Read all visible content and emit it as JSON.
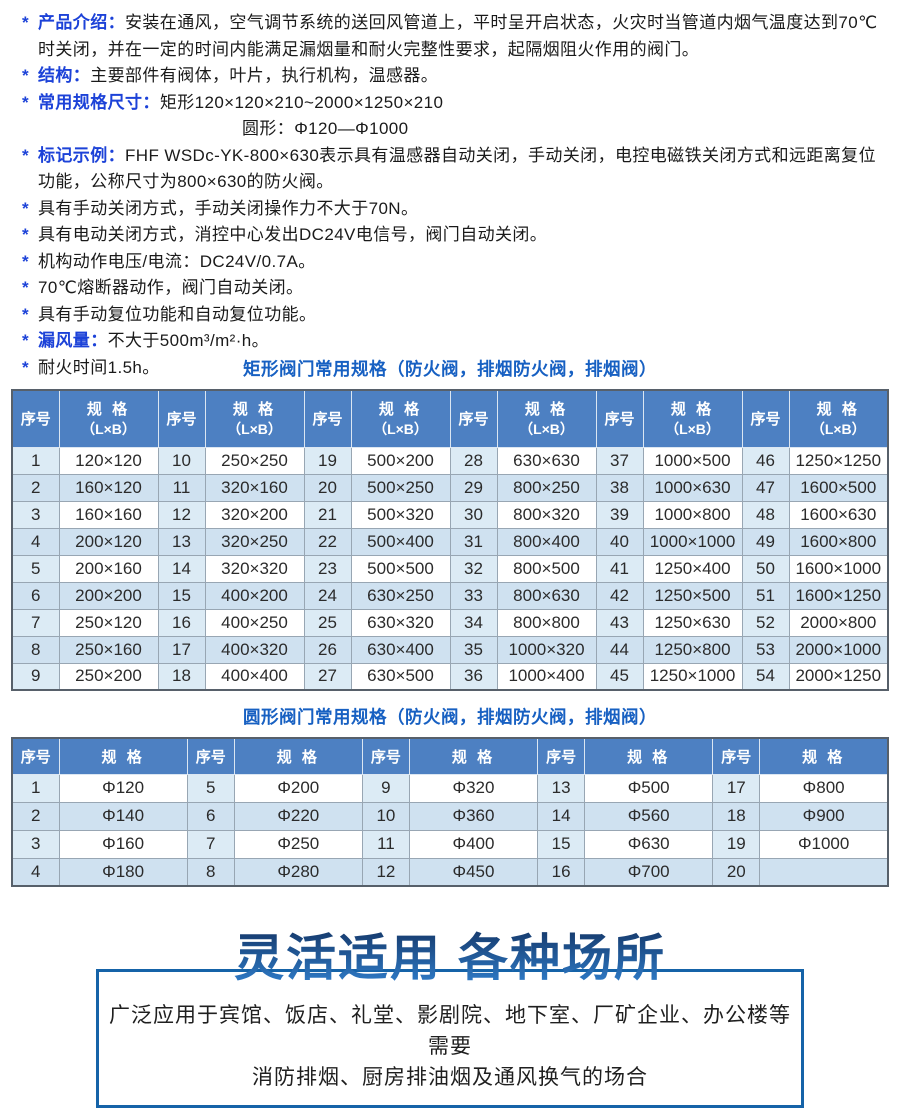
{
  "colors": {
    "accent_label_blue": "#1c42d8",
    "table_title_blue": "#1760c2",
    "table_header_bg": "#4d80c2",
    "table_header_text": "#ffffff",
    "row_alt_blue": "#cfe1f0",
    "seq_cell_tint": "#dcebf5",
    "bottom_box_border": "#1563a8",
    "bottom_title_gradient_top": "#173e72",
    "bottom_title_gradient_bottom": "#2e7ac6"
  },
  "intro": {
    "items": [
      {
        "label": "产品介绍：",
        "text": "安装在通风，空气调节系统的送回风管道上，平时呈开启状态，火灾时当管道内烟气温度达到70℃时关闭，并在一定的时间内能满足漏烟量和耐火完整性要求，起隔烟阻火作用的阀门。"
      },
      {
        "label": "结构：",
        "text": "主要部件有阀体，叶片，执行机构，温感器。"
      },
      {
        "label": "常用规格尺寸：",
        "text": "矩形120×120×210~2000×1250×210",
        "text2": "圆形：Φ120—Φ1000"
      },
      {
        "label": "标记示例：",
        "text": "FHF WSDc-YK-800×630表示具有温感器自动关闭，手动关闭，电控电磁铁关闭方式和远距离复位功能，公称尺寸为800×630的防火阀。"
      },
      {
        "label": "",
        "text": "具有手动关闭方式，手动关闭操作力不大于70N。"
      },
      {
        "label": "",
        "text": "具有电动关闭方式，消控中心发出DC24V电信号，阀门自动关闭。"
      },
      {
        "label": "",
        "text": "机构动作电压/电流：DC24V/0.7A。"
      },
      {
        "label": "",
        "text": "70℃熔断器动作，阀门自动关闭。"
      },
      {
        "label": "",
        "text": "具有手动复位功能和自动复位功能。"
      },
      {
        "label": "漏风量：",
        "text": "不大于500m³/m²·h。"
      },
      {
        "label": "",
        "text": "耐火时间1.5h。"
      }
    ]
  },
  "rect_table": {
    "title": "矩形阀门常用规格（防火阀，排烟防火阀，排烟阀）",
    "pairs": 6,
    "seq_header": "序号",
    "spec_header": "规 格",
    "spec_sub": "（L×B）",
    "rows": [
      [
        "1",
        "120×120",
        "10",
        "250×250",
        "19",
        "500×200",
        "28",
        "630×630",
        "37",
        "1000×500",
        "46",
        "1250×1250"
      ],
      [
        "2",
        "160×120",
        "11",
        "320×160",
        "20",
        "500×250",
        "29",
        "800×250",
        "38",
        "1000×630",
        "47",
        "1600×500"
      ],
      [
        "3",
        "160×160",
        "12",
        "320×200",
        "21",
        "500×320",
        "30",
        "800×320",
        "39",
        "1000×800",
        "48",
        "1600×630"
      ],
      [
        "4",
        "200×120",
        "13",
        "320×250",
        "22",
        "500×400",
        "31",
        "800×400",
        "40",
        "1000×1000",
        "49",
        "1600×800"
      ],
      [
        "5",
        "200×160",
        "14",
        "320×320",
        "23",
        "500×500",
        "32",
        "800×500",
        "41",
        "1250×400",
        "50",
        "1600×1000"
      ],
      [
        "6",
        "200×200",
        "15",
        "400×200",
        "24",
        "630×250",
        "33",
        "800×630",
        "42",
        "1250×500",
        "51",
        "1600×1250"
      ],
      [
        "7",
        "250×120",
        "16",
        "400×250",
        "25",
        "630×320",
        "34",
        "800×800",
        "43",
        "1250×630",
        "52",
        "2000×800"
      ],
      [
        "8",
        "250×160",
        "17",
        "400×320",
        "26",
        "630×400",
        "35",
        "1000×320",
        "44",
        "1250×800",
        "53",
        "2000×1000"
      ],
      [
        "9",
        "250×200",
        "18",
        "400×400",
        "27",
        "630×500",
        "36",
        "1000×400",
        "45",
        "1250×1000",
        "54",
        "2000×1250"
      ]
    ]
  },
  "circ_table": {
    "title": "圆形阀门常用规格（防火阀，排烟防火阀，排烟阀）",
    "pairs": 5,
    "seq_header": "序号",
    "spec_header": "规 格",
    "spec_sub": "",
    "rows": [
      [
        "1",
        "Φ120",
        "5",
        "Φ200",
        "9",
        "Φ320",
        "13",
        "Φ500",
        "17",
        "Φ800"
      ],
      [
        "2",
        "Φ140",
        "6",
        "Φ220",
        "10",
        "Φ360",
        "14",
        "Φ560",
        "18",
        "Φ900"
      ],
      [
        "3",
        "Φ160",
        "7",
        "Φ250",
        "11",
        "Φ400",
        "15",
        "Φ630",
        "19",
        "Φ1000"
      ],
      [
        "4",
        "Φ180",
        "8",
        "Φ280",
        "12",
        "Φ450",
        "16",
        "Φ700",
        "20",
        ""
      ]
    ]
  },
  "applications": {
    "title": "灵活适用 各种场所",
    "line1": "广泛应用于宾馆、饭店、礼堂、影剧院、地下室、厂矿企业、办公楼等需要",
    "line2": "消防排烟、厨房排油烟及通风换气的场合"
  }
}
